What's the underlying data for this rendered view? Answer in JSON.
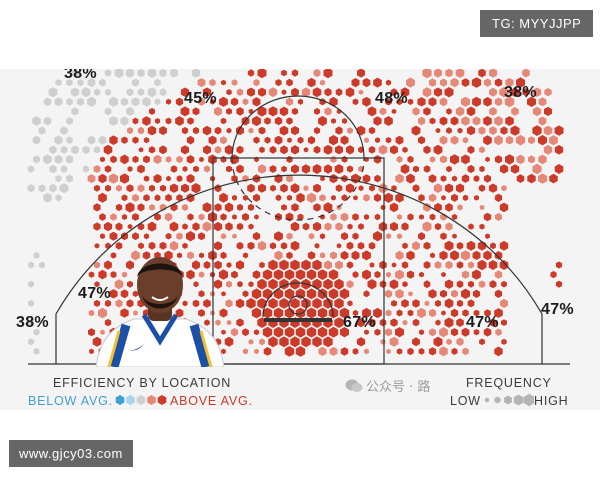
{
  "watermarks": {
    "top_tag": "TG: MYYJJPP",
    "bottom_tag": "www.gjcy03.com",
    "overlay_text": "公众号 · 路"
  },
  "colors": {
    "above_avg": "#cc3a2a",
    "above_avg_light": "#e58878",
    "below_avg": "#3f9fd6",
    "below_avg_light": "#a9d4ef",
    "neutral": "#cfcfcf",
    "court_line": "#333333",
    "background": "#f5f4f4"
  },
  "chart_data": {
    "type": "heatmap",
    "title": "EFFICIENCY BY LOCATION",
    "color_legend": {
      "low_label": "BELOW AVG.",
      "high_label": "ABOVE AVG."
    },
    "size_legend": {
      "title": "FREQUENCY",
      "low_label": "LOW",
      "high_label": "HIGH"
    },
    "zones": [
      {
        "zone": "left-wing-three",
        "fg_pct": "38%"
      },
      {
        "zone": "left-elbow-mid",
        "fg_pct": "45%"
      },
      {
        "zone": "top-key-mid",
        "fg_pct": "48%"
      },
      {
        "zone": "right-wing-three",
        "fg_pct": "38%"
      },
      {
        "zone": "left-baseline-mid",
        "fg_pct": "47%"
      },
      {
        "zone": "left-corner-three",
        "fg_pct": "38%"
      },
      {
        "zone": "restricted-area",
        "fg_pct": "67%"
      },
      {
        "zone": "right-baseline-mid",
        "fg_pct": "47%"
      },
      {
        "zone": "right-corner-three",
        "fg_pct": "47%"
      }
    ]
  }
}
